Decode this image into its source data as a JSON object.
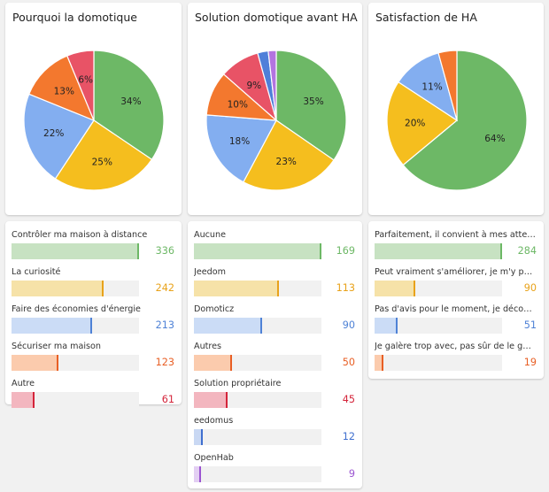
{
  "chart_data": [
    {
      "type": "pie",
      "title": "Pourquoi la domotique",
      "slices": [
        {
          "label": "Contrôler ma maison à distance",
          "value": 336,
          "pct": "34%",
          "color": "#6db866"
        },
        {
          "label": "La curiosité",
          "value": 242,
          "pct": "25%",
          "color": "#f5be1e"
        },
        {
          "label": "Faire des économies d'énergie",
          "value": 213,
          "pct": "22%",
          "color": "#83aef0"
        },
        {
          "label": "Sécuriser ma maison",
          "value": 123,
          "pct": "13%",
          "color": "#f3782e"
        },
        {
          "label": "Autre",
          "value": 61,
          "pct": "6%",
          "color": "#e85366"
        }
      ]
    },
    {
      "type": "pie",
      "title": "Solution domotique avant HA",
      "slices": [
        {
          "label": "Aucune",
          "value": 169,
          "pct": "35%",
          "color": "#6db866"
        },
        {
          "label": "Jeedom",
          "value": 113,
          "pct": "23%",
          "color": "#f5be1e"
        },
        {
          "label": "Domoticz",
          "value": 90,
          "pct": "18%",
          "color": "#83aef0"
        },
        {
          "label": "Autres",
          "value": 50,
          "pct": "10%",
          "color": "#f3782e"
        },
        {
          "label": "Solution propriétaire",
          "value": 45,
          "pct": "9%",
          "color": "#e85366"
        },
        {
          "label": "eedomus",
          "value": 12,
          "pct": "",
          "color": "#4f7fd9"
        },
        {
          "label": "OpenHab",
          "value": 9,
          "pct": "",
          "color": "#b374e0"
        }
      ]
    },
    {
      "type": "pie",
      "title": "Satisfaction de HA",
      "slices": [
        {
          "label": "Parfaitement, il convient à mes attentes",
          "value": 284,
          "pct": "64%",
          "color": "#6db866"
        },
        {
          "label": "Peut vraiment s'améliorer, je m'y perds",
          "value": 90,
          "pct": "20%",
          "color": "#f5be1e"
        },
        {
          "label": "Pas d'avis pour le moment, je découvre",
          "value": 51,
          "pct": "11%",
          "color": "#83aef0"
        },
        {
          "label": "Je galère trop avec, pas sûr de le garder",
          "value": 19,
          "pct": "",
          "color": "#f3782e"
        }
      ]
    }
  ],
  "bar_lists": [
    {
      "max": 336,
      "rows": [
        {
          "label": "Contrôler ma maison à distance",
          "value": 336,
          "color": "#6db866",
          "fill": "#c7e2c2"
        },
        {
          "label": "La curiosité",
          "value": 242,
          "color": "#e8a21a",
          "fill": "#f6e2a8"
        },
        {
          "label": "Faire des économies d'énergie",
          "value": 213,
          "color": "#4f82d6",
          "fill": "#cbdcf6"
        },
        {
          "label": "Sécuriser ma maison",
          "value": 123,
          "color": "#e85f25",
          "fill": "#fbcbad"
        },
        {
          "label": "Autre",
          "value": 61,
          "color": "#d4243a",
          "fill": "#f3b6bf"
        }
      ]
    },
    {
      "max": 169,
      "rows": [
        {
          "label": "Aucune",
          "value": 169,
          "color": "#6db866",
          "fill": "#c7e2c2"
        },
        {
          "label": "Jeedom",
          "value": 113,
          "color": "#e8a21a",
          "fill": "#f6e2a8"
        },
        {
          "label": "Domoticz",
          "value": 90,
          "color": "#4f82d6",
          "fill": "#cbdcf6"
        },
        {
          "label": "Autres",
          "value": 50,
          "color": "#e85f25",
          "fill": "#fbcbad"
        },
        {
          "label": "Solution propriétaire",
          "value": 45,
          "color": "#d4243a",
          "fill": "#f3b6bf"
        },
        {
          "label": "eedomus",
          "value": 12,
          "color": "#3f6fcf",
          "fill": "#c9d8f3"
        },
        {
          "label": "OpenHab",
          "value": 9,
          "color": "#9b55d1",
          "fill": "#e3cff3"
        }
      ]
    },
    {
      "max": 284,
      "rows": [
        {
          "label": "Parfaitement, il convient à mes attentes",
          "value": 284,
          "color": "#6db866",
          "fill": "#c7e2c2"
        },
        {
          "label": "Peut vraiment s'améliorer, je m'y perds",
          "value": 90,
          "color": "#e8a21a",
          "fill": "#f6e2a8"
        },
        {
          "label": "Pas d'avis pour le moment, je découvre",
          "value": 51,
          "color": "#4f82d6",
          "fill": "#cbdcf6"
        },
        {
          "label": "Je galère trop avec, pas sûr de le garder",
          "value": 19,
          "color": "#e85f25",
          "fill": "#fbcbad"
        }
      ]
    }
  ]
}
